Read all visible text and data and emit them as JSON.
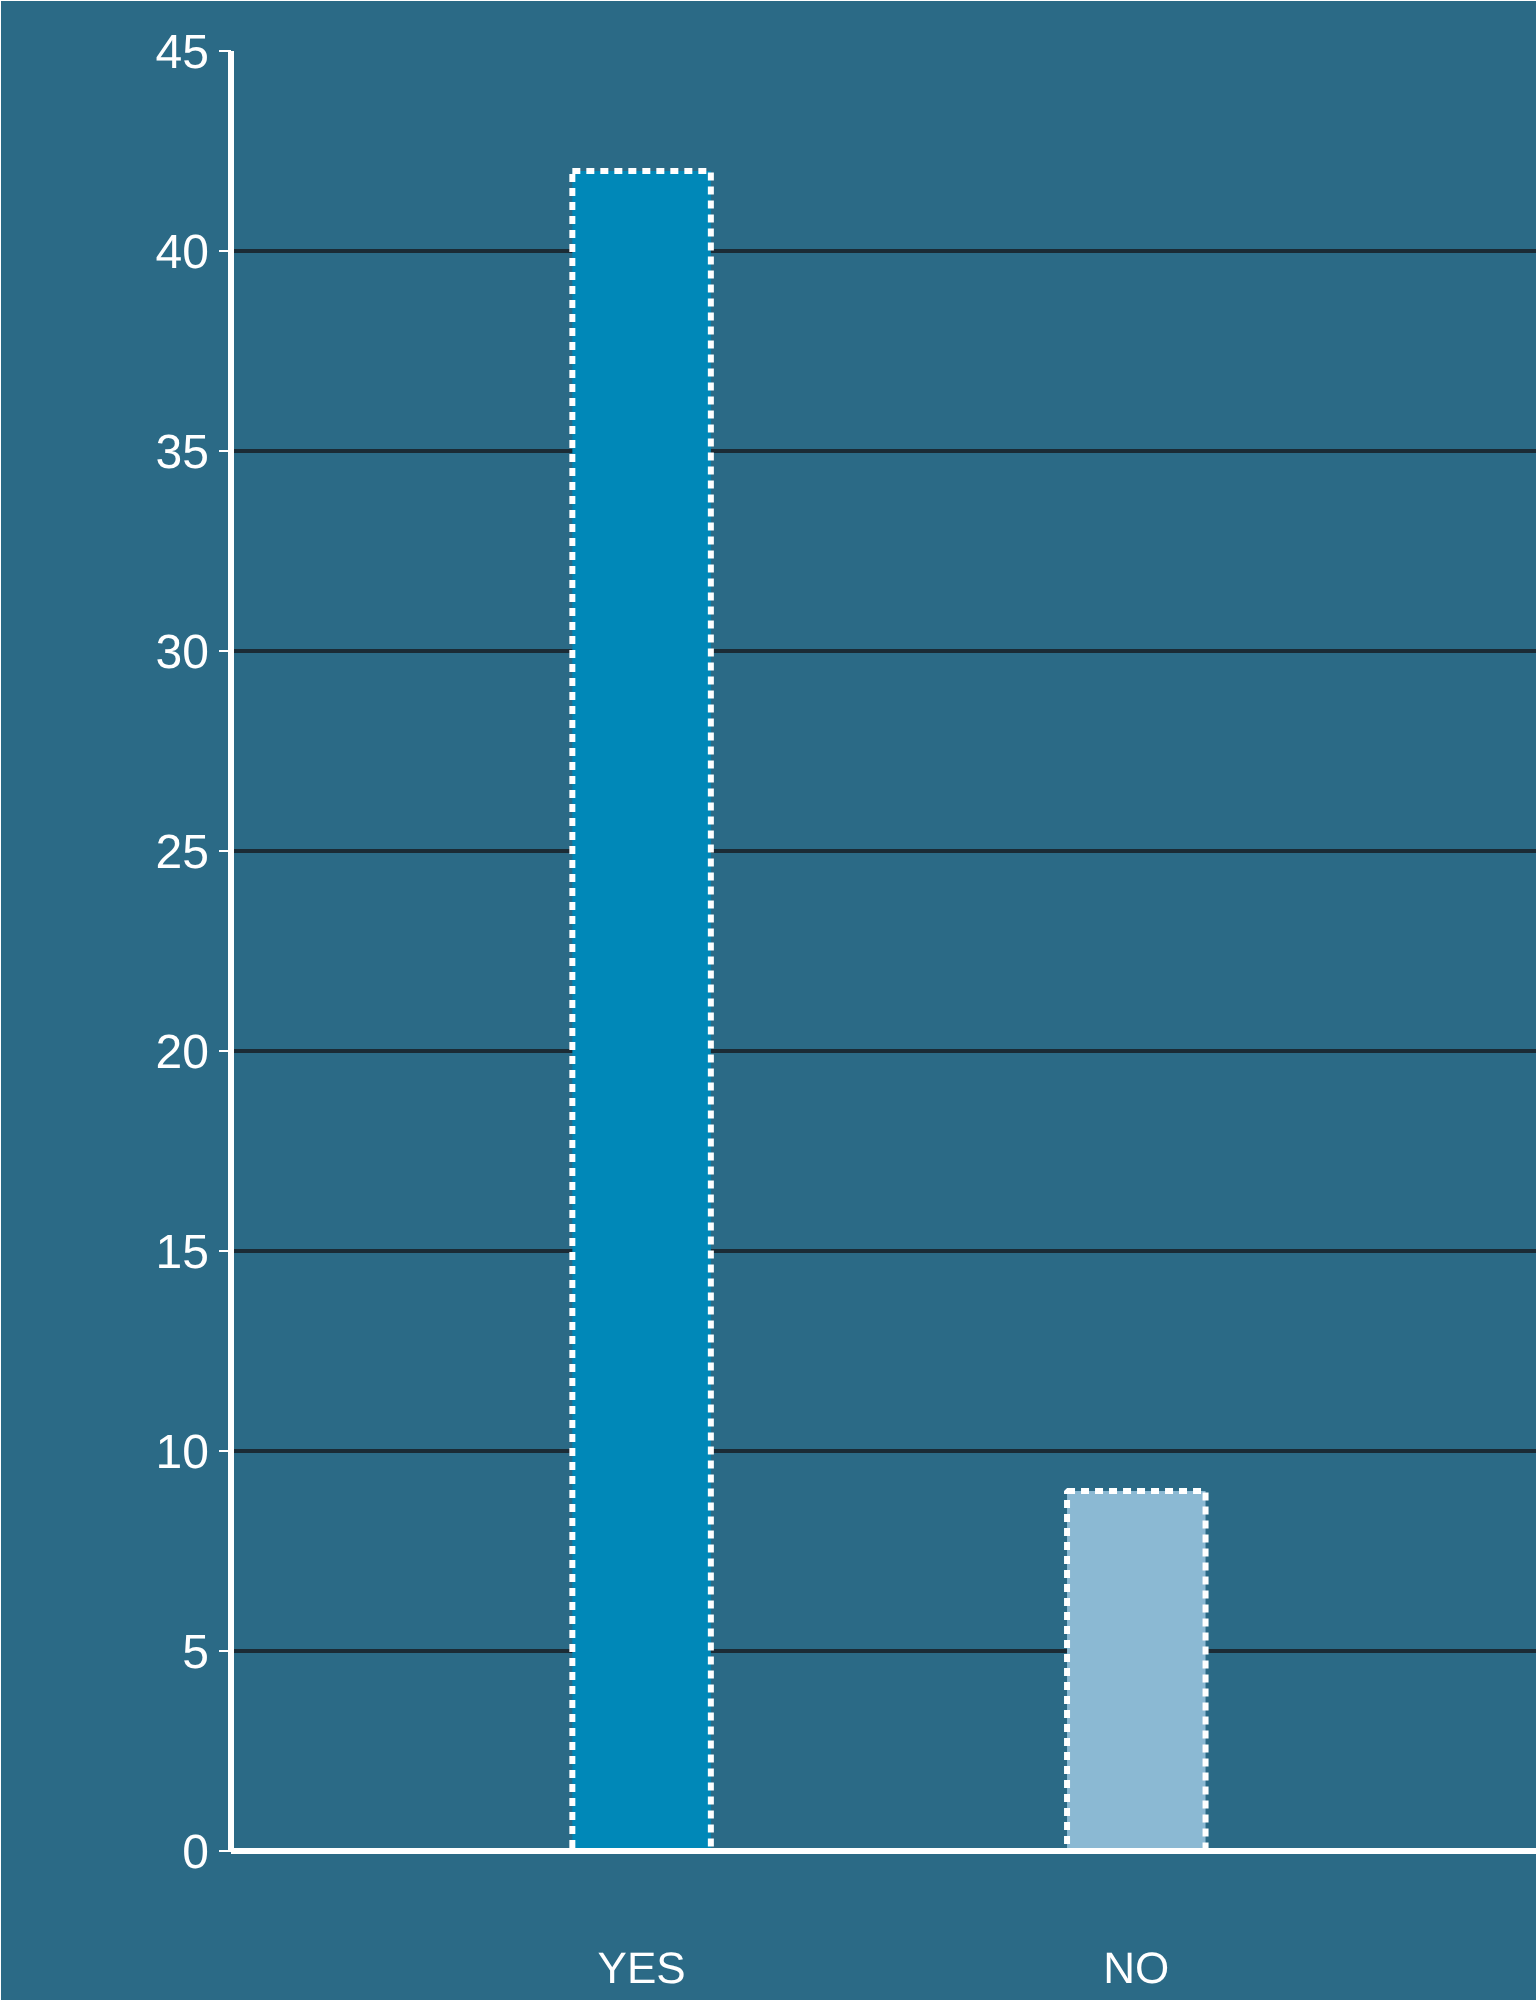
{
  "chart_data": {
    "type": "bar",
    "categories": [
      "YES",
      "NO"
    ],
    "values": [
      42,
      9
    ],
    "colors": [
      "#0088b8",
      "#8bb9d3"
    ],
    "ylim": [
      0,
      45
    ],
    "yticks": [
      0,
      5,
      10,
      15,
      20,
      25,
      30,
      35,
      40,
      45
    ],
    "grid": "y"
  }
}
